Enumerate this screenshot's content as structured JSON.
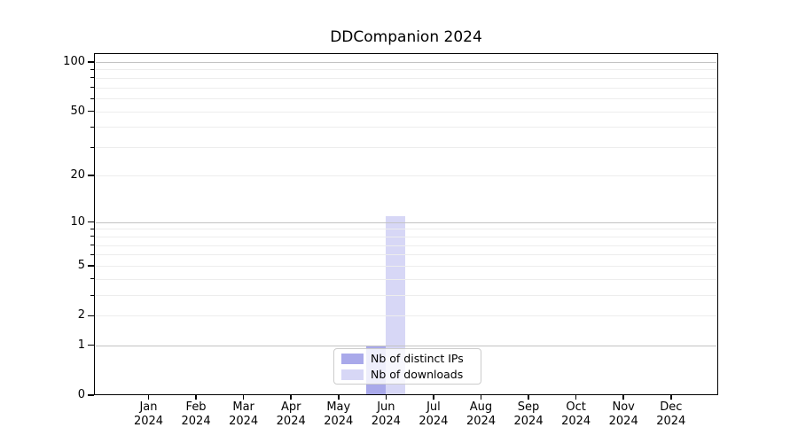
{
  "chart_data": {
    "type": "bar",
    "title": "DDCompanion 2024",
    "x_months": [
      "Jan",
      "Feb",
      "Mar",
      "Apr",
      "May",
      "Jun",
      "Jul",
      "Aug",
      "Sep",
      "Oct",
      "Nov",
      "Dec"
    ],
    "x_year": "2024",
    "x_categories": [
      "Jan 2024",
      "Feb 2024",
      "Mar 2024",
      "Apr 2024",
      "May 2024",
      "Jun 2024",
      "Jul 2024",
      "Aug 2024",
      "Sep 2024",
      "Oct 2024",
      "Nov 2024",
      "Dec 2024"
    ],
    "series": [
      {
        "name": "Nb of distinct IPs",
        "color": "#a9a9ea",
        "values": [
          0,
          0,
          0,
          0,
          0,
          1,
          0,
          0,
          0,
          0,
          0,
          0
        ]
      },
      {
        "name": "Nb of downloads",
        "color": "#d7d7f6",
        "values": [
          0,
          0,
          0,
          0,
          0,
          11,
          0,
          0,
          0,
          0,
          0,
          0
        ]
      }
    ],
    "y_axis": {
      "scale": "log10(1+v)",
      "tick_labels": [
        0,
        1,
        2,
        5,
        10,
        20,
        50,
        100
      ],
      "major_gridlines": [
        1,
        10,
        100
      ],
      "minor_gridlines": [
        2,
        3,
        4,
        5,
        6,
        7,
        8,
        9,
        20,
        30,
        40,
        50,
        60,
        70,
        80,
        90
      ],
      "ylim": [
        0,
        113
      ]
    },
    "xlabel": "",
    "ylabel": "",
    "grid": true,
    "legend": {
      "position": "lower center",
      "entries": [
        "Nb of distinct IPs",
        "Nb of downloads"
      ]
    }
  }
}
